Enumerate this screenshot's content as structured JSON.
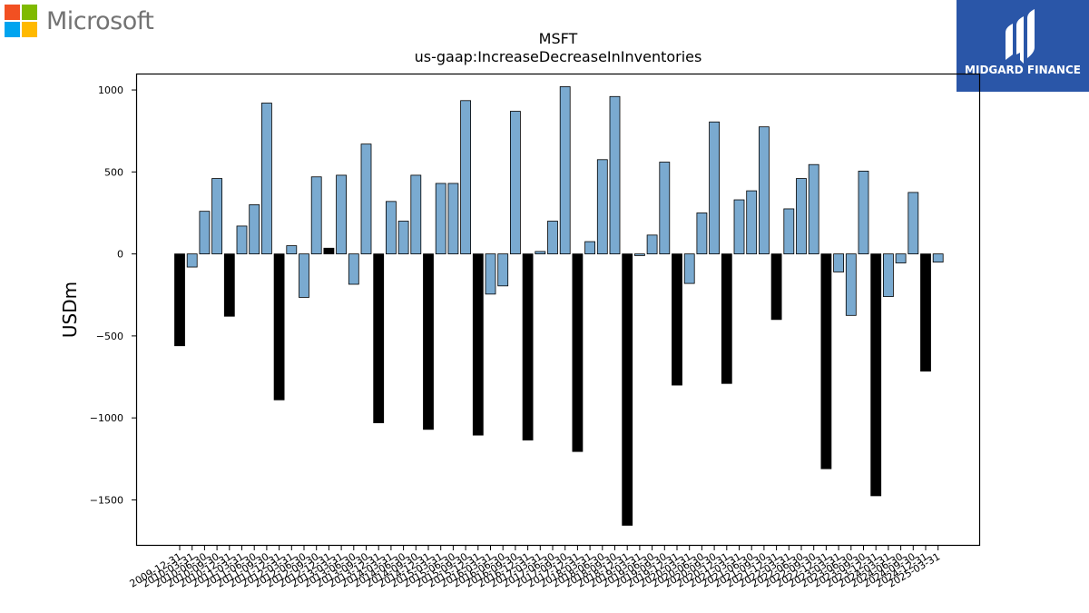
{
  "brand": {
    "name": "Microsoft",
    "logo_colors": [
      "#f25022",
      "#7fba00",
      "#00a4ef",
      "#ffb900"
    ]
  },
  "badge": {
    "name": "MIDGARD FINANCE",
    "background": "#2a56a8"
  },
  "chart_data": {
    "type": "bar",
    "title": "MSFT",
    "subtitle": "us-gaap:IncreaseDecreaseInInventories",
    "ylabel": "USDm",
    "xlabel": "",
    "ylim": [
      -1780,
      1100
    ],
    "yticks": [
      1000,
      500,
      0,
      -500,
      -1000,
      -1500
    ],
    "ytick_labels": [
      "1000",
      "500",
      "0",
      "−500",
      "−1000",
      "−1500"
    ],
    "grid": false,
    "colors": {
      "quarter": "#7aaad0",
      "annual": "#000000",
      "edge": "#000000"
    },
    "categories": [
      "2009-12-31",
      "2010-03-31",
      "2010-06-30",
      "2010-09-30",
      "2010-12-31",
      "2011-03-31",
      "2011-06-30",
      "2011-09-30",
      "2011-12-31",
      "2012-03-31",
      "2012-06-30",
      "2012-09-30",
      "2012-12-31",
      "2013-03-31",
      "2013-06-30",
      "2013-09-30",
      "2013-12-31",
      "2014-03-31",
      "2014-06-30",
      "2014-09-30",
      "2014-12-31",
      "2015-03-31",
      "2015-06-30",
      "2015-09-30",
      "2015-12-31",
      "2016-03-31",
      "2016-06-30",
      "2016-09-30",
      "2016-12-31",
      "2017-03-31",
      "2017-06-30",
      "2017-09-30",
      "2017-12-31",
      "2018-03-31",
      "2018-06-30",
      "2018-09-30",
      "2018-12-31",
      "2019-03-31",
      "2019-06-30",
      "2019-09-30",
      "2019-12-31",
      "2020-03-31",
      "2020-06-30",
      "2020-09-30",
      "2020-12-31",
      "2021-03-31",
      "2021-06-30",
      "2021-09-30",
      "2021-12-31",
      "2022-03-31",
      "2022-06-30",
      "2022-09-30",
      "2022-12-31",
      "2023-03-31",
      "2023-06-30",
      "2023-09-30",
      "2023-12-31",
      "2024-03-31",
      "2024-06-30",
      "2024-09-30",
      "2024-12-31",
      "2025-03-31"
    ],
    "values": [
      -560,
      -80,
      260,
      460,
      -380,
      170,
      300,
      920,
      -890,
      50,
      -265,
      470,
      35,
      480,
      -185,
      670,
      -1030,
      320,
      200,
      480,
      -1070,
      430,
      430,
      935,
      -1105,
      -245,
      -195,
      870,
      -1135,
      15,
      200,
      1020,
      -1205,
      75,
      575,
      960,
      -1655,
      -10,
      115,
      560,
      -800,
      -180,
      250,
      805,
      -790,
      330,
      385,
      775,
      -400,
      275,
      460,
      545,
      -1310,
      -110,
      -375,
      505,
      -1475,
      -260,
      -55,
      375,
      -715,
      -50
    ],
    "annual_flags": [
      1,
      0,
      0,
      0,
      1,
      0,
      0,
      0,
      1,
      0,
      0,
      0,
      1,
      0,
      0,
      0,
      1,
      0,
      0,
      0,
      1,
      0,
      0,
      0,
      1,
      0,
      0,
      0,
      1,
      0,
      0,
      0,
      1,
      0,
      0,
      0,
      1,
      0,
      0,
      0,
      1,
      0,
      0,
      0,
      1,
      0,
      0,
      0,
      1,
      0,
      0,
      0,
      1,
      0,
      0,
      0,
      1,
      0,
      0,
      0,
      1,
      0
    ]
  }
}
